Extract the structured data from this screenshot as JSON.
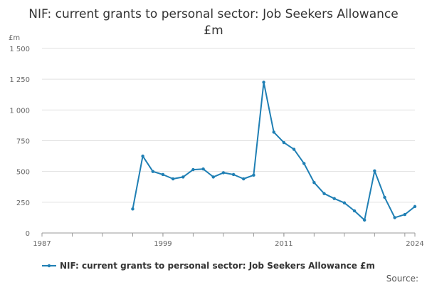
{
  "chart_data": {
    "type": "line",
    "title": "NIF: current grants to personal sector: Job Seekers Allowance £m",
    "ylabel": "£m",
    "ylim": [
      0,
      1500
    ],
    "yticks": [
      0,
      250,
      500,
      750,
      1000,
      1250,
      1500
    ],
    "ytick_labels": [
      "0",
      "250",
      "500",
      "750",
      "1 000",
      "1 250",
      "1 500"
    ],
    "xlim": [
      1987,
      2024
    ],
    "xticks": [
      1987,
      1999,
      2011,
      2024
    ],
    "xtick_labels": [
      "1987",
      "1999",
      "2011",
      "2024"
    ],
    "grid": true,
    "legend_position": "bottom",
    "series": [
      {
        "name": "NIF: current grants to personal sector: Job Seekers Allowance £m",
        "color": "#1f7fb4",
        "x": [
          1996,
          1997,
          1998,
          1999,
          2000,
          2001,
          2002,
          2003,
          2004,
          2005,
          2006,
          2007,
          2008,
          2009,
          2010,
          2011,
          2012,
          2013,
          2014,
          2015,
          2016,
          2017,
          2018,
          2019,
          2020,
          2021,
          2022,
          2023,
          2024
        ],
        "values": [
          195,
          625,
          500,
          475,
          440,
          455,
          515,
          520,
          455,
          490,
          475,
          440,
          470,
          1225,
          820,
          735,
          680,
          565,
          410,
          320,
          280,
          245,
          180,
          105,
          505,
          290,
          125,
          150,
          215
        ]
      }
    ],
    "source_label": "Source:"
  }
}
